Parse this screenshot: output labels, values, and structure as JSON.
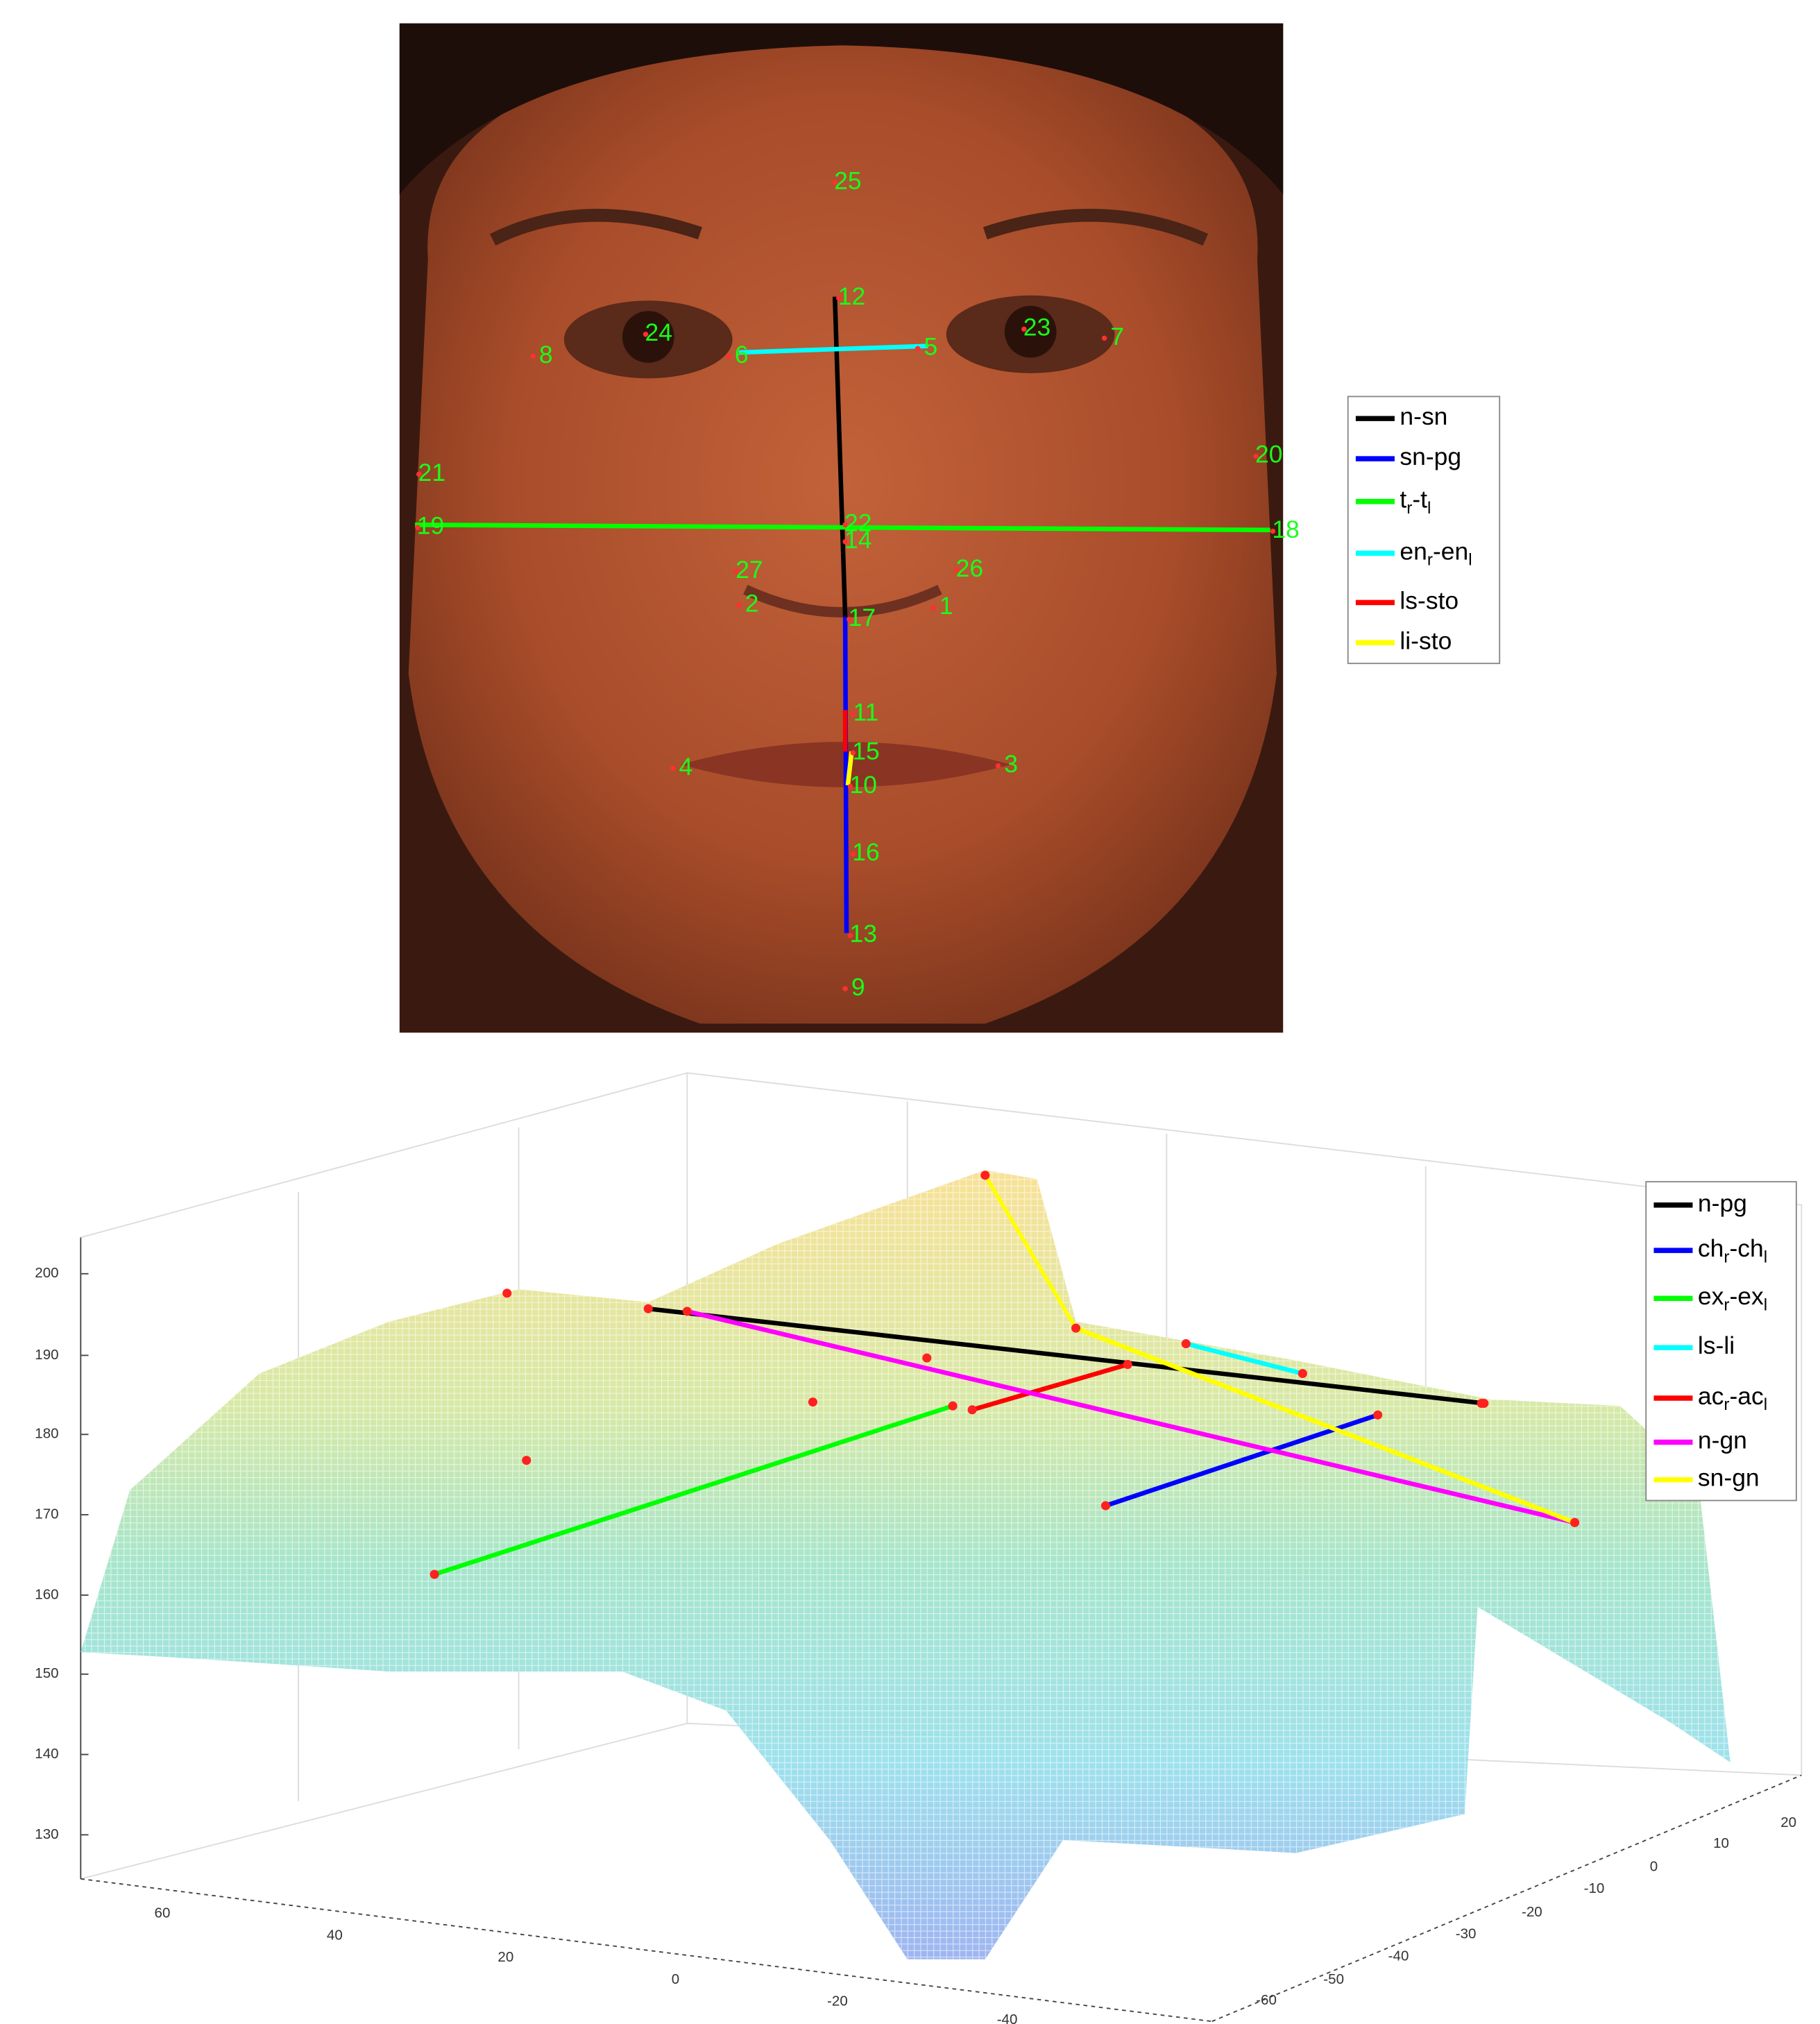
{
  "face_panel": {
    "landmarks": [
      "1",
      "2",
      "3",
      "4",
      "5",
      "6",
      "7",
      "8",
      "9",
      "10",
      "11",
      "12",
      "13",
      "14",
      "15",
      "16",
      "17",
      "18",
      "19",
      "20",
      "21",
      "22",
      "23",
      "24",
      "25",
      "26",
      "27"
    ],
    "legend": [
      {
        "parts": [
          {
            "text": "n-sn"
          }
        ],
        "color": "#000000"
      },
      {
        "parts": [
          {
            "text": "sn-pg"
          }
        ],
        "color": "#0000ff"
      },
      {
        "parts": [
          {
            "text": "t"
          },
          {
            "text": "r",
            "sub": true
          },
          {
            "text": "-t"
          },
          {
            "text": "l",
            "sub": true
          }
        ],
        "color": "#00ff00"
      },
      {
        "parts": [
          {
            "text": "en"
          },
          {
            "text": "r",
            "sub": true
          },
          {
            "text": "-en"
          },
          {
            "text": "l",
            "sub": true
          }
        ],
        "color": "#00ffff"
      },
      {
        "parts": [
          {
            "text": "ls-sto"
          }
        ],
        "color": "#ff0000"
      },
      {
        "parts": [
          {
            "text": "li-sto"
          }
        ],
        "color": "#ffff00"
      }
    ]
  },
  "mesh_panel": {
    "zticks": [
      200,
      190,
      180,
      170,
      160,
      150,
      140,
      130
    ],
    "xticks": [
      60,
      40,
      20,
      0,
      -20,
      -40
    ],
    "yticks": [
      20,
      10,
      0,
      -10,
      -20,
      -30,
      -40,
      -50,
      -60
    ],
    "legend": [
      {
        "parts": [
          {
            "text": "n-pg"
          }
        ],
        "color": "#000000"
      },
      {
        "parts": [
          {
            "text": "ch"
          },
          {
            "text": "r",
            "sub": true
          },
          {
            "text": "-ch"
          },
          {
            "text": "l",
            "sub": true
          }
        ],
        "color": "#0000ff"
      },
      {
        "parts": [
          {
            "text": "ex"
          },
          {
            "text": "r",
            "sub": true
          },
          {
            "text": "-ex"
          },
          {
            "text": "l",
            "sub": true
          }
        ],
        "color": "#00ff00"
      },
      {
        "parts": [
          {
            "text": "ls-li"
          }
        ],
        "color": "#00ffff"
      },
      {
        "parts": [
          {
            "text": "ac"
          },
          {
            "text": "r",
            "sub": true
          },
          {
            "text": "-ac"
          },
          {
            "text": "l",
            "sub": true
          }
        ],
        "color": "#ff0000"
      },
      {
        "parts": [
          {
            "text": "n-gn"
          }
        ],
        "color": "#ff00ff"
      },
      {
        "parts": [
          {
            "text": "sn-gn"
          }
        ],
        "color": "#ffff00"
      }
    ]
  }
}
